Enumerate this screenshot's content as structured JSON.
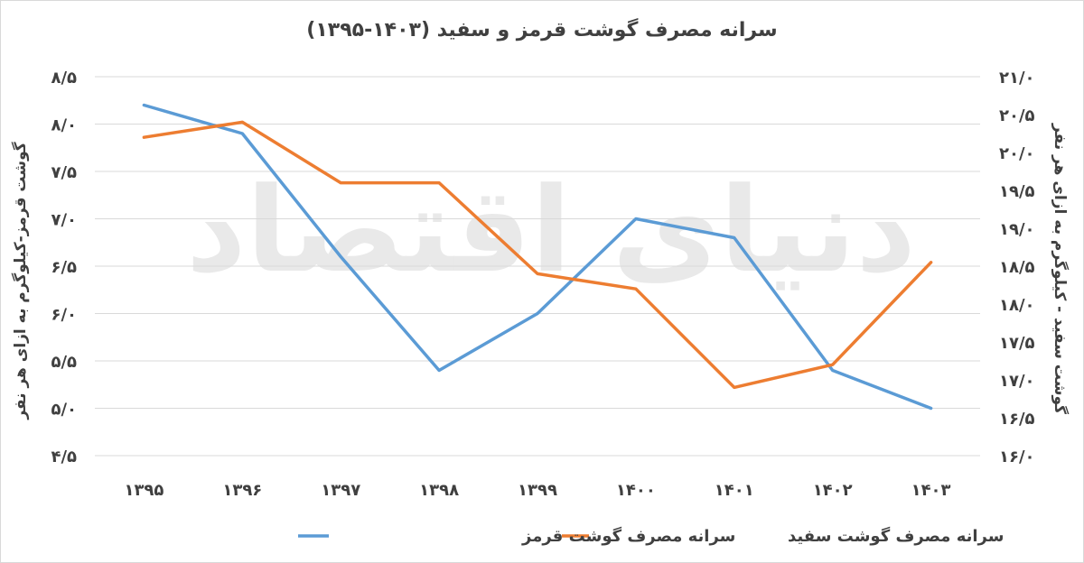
{
  "chart_data": {
    "type": "line",
    "title": "سرانه مصرف گوشت قرمز و سفید (۱۴۰۳-۱۳۹۵)",
    "watermark": "دنیای اقتصاد",
    "categories": [
      "۱۳۹۵",
      "۱۳۹۶",
      "۱۳۹۷",
      "۱۳۹۸",
      "۱۳۹۹",
      "۱۴۰۰",
      "۱۴۰۱",
      "۱۴۰۲",
      "۱۴۰۳"
    ],
    "series": [
      {
        "name": "سرانه مصرف گوشت قرمز",
        "axis": "left",
        "color": "#5b9bd5",
        "values": [
          8.2,
          7.9,
          6.6,
          5.4,
          6.0,
          7.0,
          6.8,
          5.4,
          5.0
        ]
      },
      {
        "name": "سرانه مصرف گوشت سفید",
        "axis": "right",
        "color": "#ed7d31",
        "values": [
          20.2,
          20.4,
          19.6,
          19.6,
          18.4,
          18.2,
          16.9,
          17.2,
          18.55
        ]
      }
    ],
    "left_axis": {
      "label": "گوشت قرمز-کیلوگرم به ازای هر نفر",
      "ylim": [
        4.5,
        8.5
      ],
      "ticks": [
        "۴/۵",
        "۵/۰",
        "۵/۵",
        "۶/۰",
        "۶/۵",
        "۷/۰",
        "۷/۵",
        "۸/۰",
        "۸/۵"
      ]
    },
    "right_axis": {
      "label": "گوشت سفید - کیلوگرم به ازای هر نفر",
      "ylim": [
        16.0,
        21.0
      ],
      "ticks": [
        "۱۶/۰",
        "۱۶/۵",
        "۱۷/۰",
        "۱۷/۵",
        "۱۸/۰",
        "۱۸/۵",
        "۱۹/۰",
        "۱۹/۵",
        "۲۰/۰",
        "۲۰/۵",
        "۲۱/۰"
      ]
    },
    "grid": true,
    "legend_position": "bottom"
  }
}
